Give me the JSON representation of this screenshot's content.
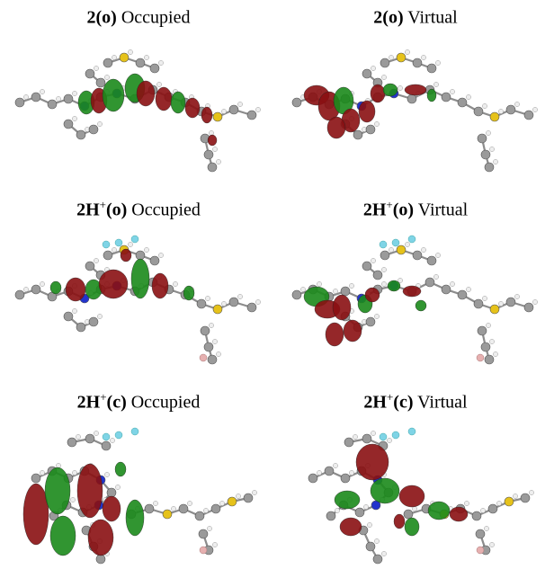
{
  "colors": {
    "lobe_positive": "#1b8a1b",
    "lobe_negative": "#8a0f12",
    "carbon": "#9a9a9a",
    "hydrogen": "#eeeeee",
    "nitrogen": "#2233cc",
    "sulfur": "#e6c21a",
    "fluorine": "#7fd4e6",
    "boron": "#e6b0b0"
  },
  "panels": [
    {
      "bold": "2(o)",
      "sup": "",
      "bold_tail": "",
      "rest": " Occupied",
      "species": "2(o)",
      "orbital": "Occupied"
    },
    {
      "bold": "2(o)",
      "sup": "",
      "bold_tail": "",
      "rest": " Virtual",
      "species": "2(o)",
      "orbital": "Virtual"
    },
    {
      "bold": "2H",
      "sup": "+",
      "bold_tail": "(o)",
      "rest": " Occupied",
      "species": "2H+(o)",
      "orbital": "Occupied"
    },
    {
      "bold": "2H",
      "sup": "+",
      "bold_tail": "(o)",
      "rest": "  Virtual",
      "species": "2H+(o)",
      "orbital": "Virtual"
    },
    {
      "bold": "2H",
      "sup": "+",
      "bold_tail": "(c)",
      "rest": " Occupied",
      "species": "2H+(c)",
      "orbital": "Occupied"
    },
    {
      "bold": "2H",
      "sup": "+",
      "bold_tail": "(c)",
      "rest": "  Virtual",
      "species": "2H+(c)",
      "orbital": "Virtual"
    }
  ]
}
